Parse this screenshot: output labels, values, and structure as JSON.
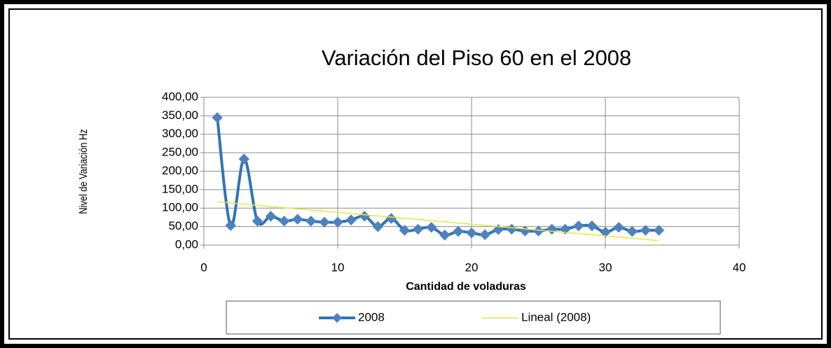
{
  "chart_data": {
    "type": "line",
    "title": "Variación del Piso 60 en el 2008",
    "x_label": "Cantidad de voladuras",
    "y_label": "Nivel de Variación Hz",
    "xlim": [
      0,
      40
    ],
    "xticks": [
      0,
      10,
      20,
      30,
      40
    ],
    "ylim": [
      0,
      400
    ],
    "yticks": [
      {
        "value": 0,
        "label": "0,00"
      },
      {
        "value": 50,
        "label": "50,00"
      },
      {
        "value": 100,
        "label": "100,00"
      },
      {
        "value": 150,
        "label": "150,00"
      },
      {
        "value": 200,
        "label": "200,00"
      },
      {
        "value": 250,
        "label": "250,00"
      },
      {
        "value": 300,
        "label": "300,00"
      },
      {
        "value": 350,
        "label": "350,00"
      },
      {
        "value": 400,
        "label": "400,00"
      }
    ],
    "grid": true,
    "legend": "bottom",
    "series": [
      {
        "name": "2008",
        "color": "#2e75b6",
        "marker": "diamond",
        "smooth": true,
        "x": [
          1,
          2,
          3,
          4,
          5,
          6,
          7,
          8,
          9,
          10,
          11,
          12,
          13,
          14,
          15,
          16,
          17,
          18,
          19,
          20,
          21,
          22,
          23,
          24,
          25,
          26,
          27,
          28,
          29,
          30,
          31,
          32,
          33,
          34
        ],
        "values": [
          345,
          53,
          233,
          65,
          78,
          65,
          70,
          65,
          62,
          62,
          68,
          78,
          50,
          72,
          40,
          43,
          48,
          27,
          37,
          33,
          28,
          42,
          43,
          38,
          38,
          43,
          43,
          52,
          52,
          35,
          48,
          37,
          40,
          40
        ]
      },
      {
        "name": "Lineal (2008)",
        "color": "#e6e645",
        "marker": "none",
        "smooth": false,
        "x": [
          1,
          34
        ],
        "values": [
          117,
          12
        ]
      }
    ]
  }
}
